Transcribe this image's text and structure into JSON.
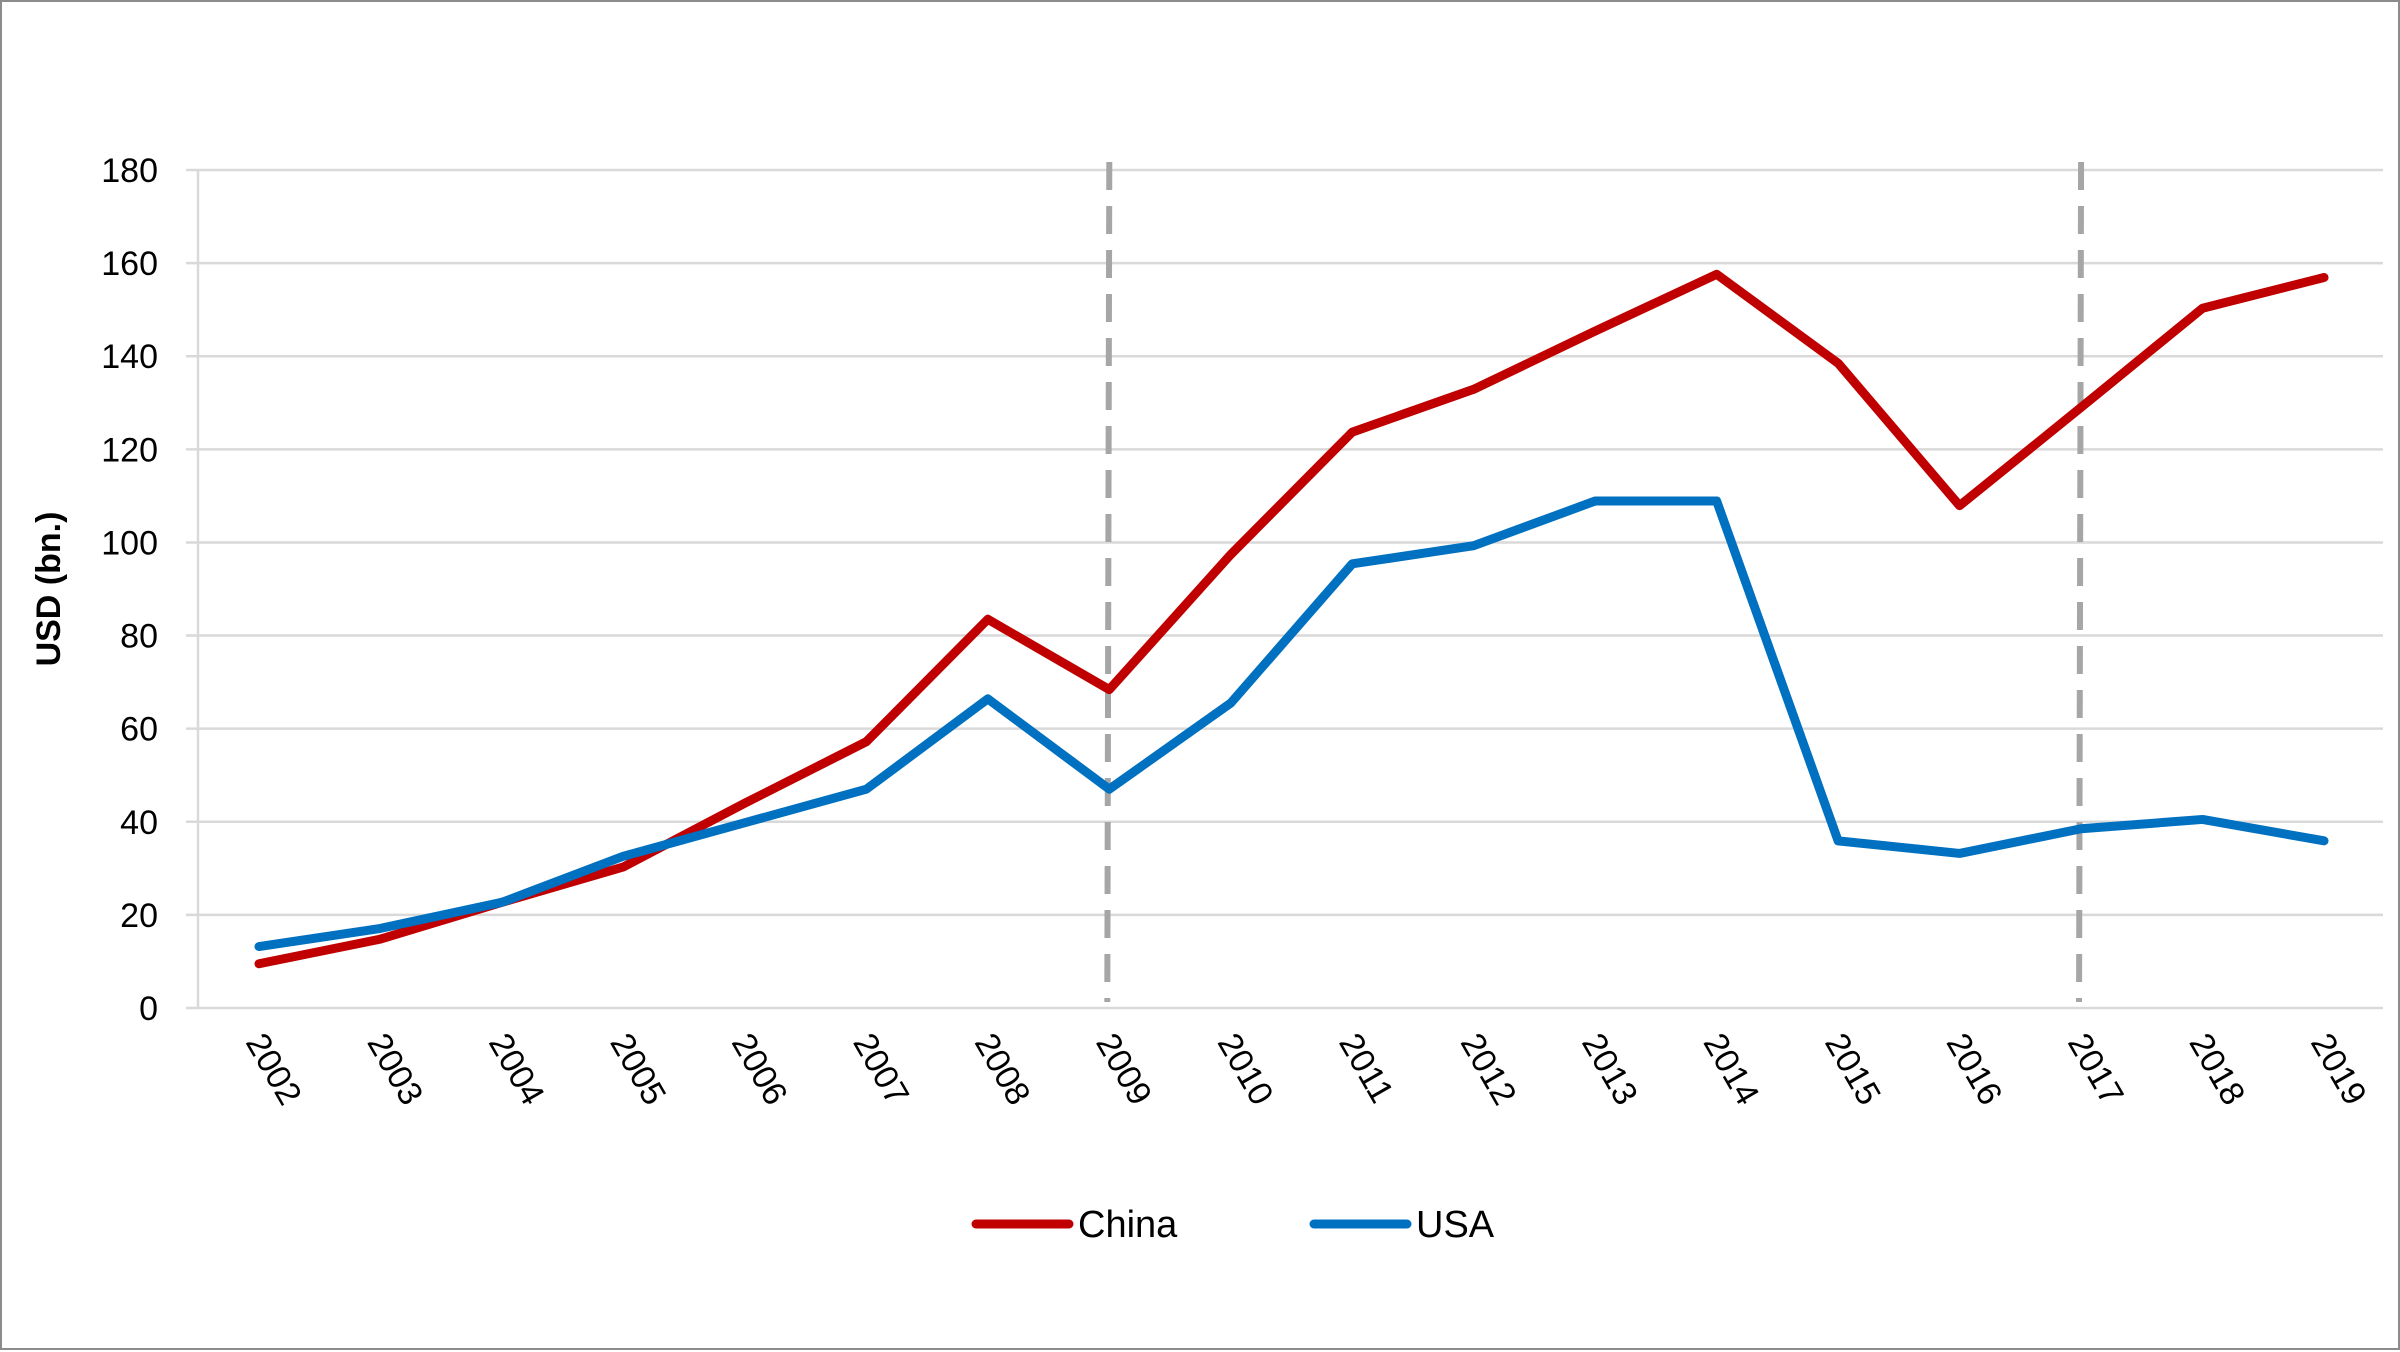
{
  "chart_data": {
    "type": "line",
    "title": "",
    "xlabel": "",
    "ylabel": "USD (bn.)",
    "ylim": [
      0,
      180
    ],
    "yticks": [
      0,
      20,
      40,
      60,
      80,
      100,
      120,
      140,
      160,
      180
    ],
    "grid": true,
    "legend_position": "bottom",
    "categories": [
      "2002",
      "2003",
      "2004",
      "2005",
      "2006",
      "2007",
      "2008",
      "2009",
      "2010",
      "2011",
      "2012",
      "2013",
      "2014",
      "2015",
      "2016",
      "2017",
      "2018",
      "2019"
    ],
    "reference_lines": [
      "2009",
      "2017"
    ],
    "series": [
      {
        "name": "China",
        "color": "#c00000",
        "values": [
          9.5,
          14.8,
          22.7,
          30.3,
          44,
          57.2,
          83.5,
          68.4,
          97.4,
          123.7,
          132.9,
          145.4,
          157.6,
          138.5,
          107.9,
          129,
          150.3,
          156.9
        ]
      },
      {
        "name": "USA",
        "color": "#0070c0",
        "values": [
          13.2,
          17.1,
          22.7,
          32.6,
          39.8,
          47,
          66.4,
          47,
          65.5,
          95.4,
          99.3,
          108.9,
          108.9,
          35.9,
          33.2,
          38.5,
          40.5,
          35.9
        ]
      }
    ]
  }
}
